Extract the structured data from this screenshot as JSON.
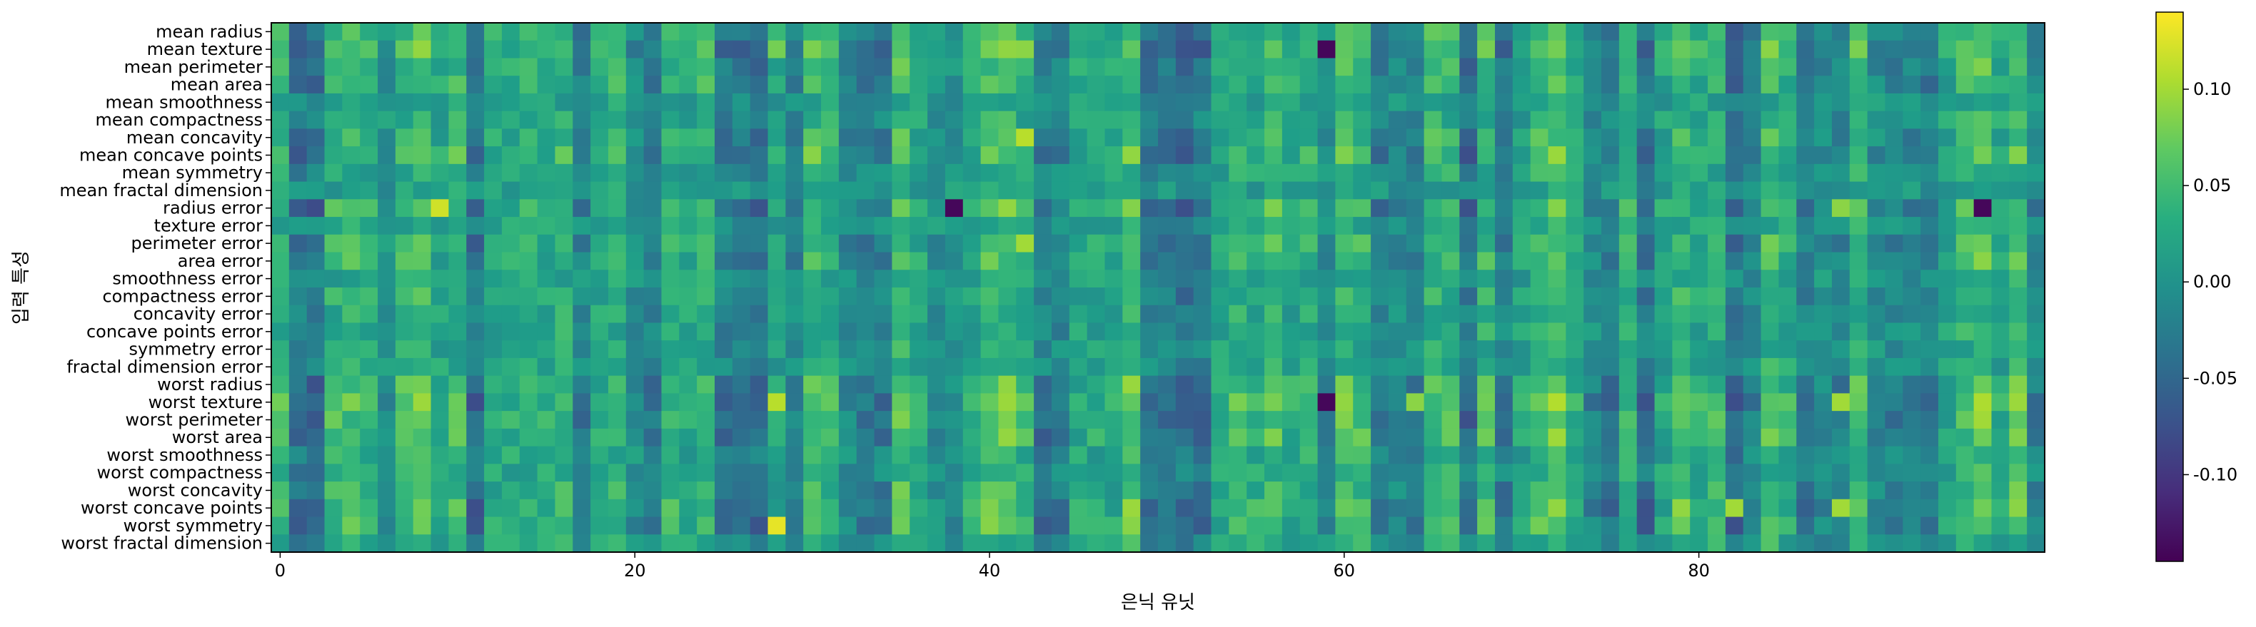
{
  "chart_data": {
    "type": "heatmap",
    "title": "",
    "xlabel": "은닉 유닛",
    "ylabel": "입력 특성",
    "n_columns": 100,
    "x_ticks": [
      0,
      20,
      40,
      60,
      80
    ],
    "y_categories": [
      "mean radius",
      "mean texture",
      "mean perimeter",
      "mean area",
      "mean smoothness",
      "mean compactness",
      "mean concavity",
      "mean concave points",
      "mean symmetry",
      "mean fractal dimension",
      "radius error",
      "texture error",
      "perimeter error",
      "area error",
      "smoothness error",
      "compactness error",
      "concavity error",
      "concave points error",
      "symmetry error",
      "fractal dimension error",
      "worst radius",
      "worst texture",
      "worst perimeter",
      "worst area",
      "worst smoothness",
      "worst compactness",
      "worst concavity",
      "worst concave points",
      "worst symmetry",
      "worst fractal dimension"
    ],
    "colorbar": {
      "colormap": "viridis",
      "range": [
        -0.145,
        0.14
      ],
      "ticks": [
        -0.1,
        -0.05,
        0.0,
        0.05,
        0.1
      ],
      "tick_labels": [
        "-0.10",
        "-0.05",
        "0.00",
        "0.05",
        "0.10"
      ]
    },
    "notable_values": [
      {
        "feature": "mean texture",
        "unit": 59,
        "value": -0.14
      },
      {
        "feature": "mean texture",
        "unit": 28,
        "value": 0.08
      },
      {
        "feature": "mean texture",
        "unit": 42,
        "value": 0.09
      },
      {
        "feature": "mean concavity",
        "unit": 42,
        "value": 0.11
      },
      {
        "feature": "radius error",
        "unit": 9,
        "value": 0.12
      },
      {
        "feature": "radius error",
        "unit": 38,
        "value": -0.14
      },
      {
        "feature": "radius error",
        "unit": 96,
        "value": -0.14
      },
      {
        "feature": "radius error",
        "unit": 88,
        "value": 0.09
      },
      {
        "feature": "perimeter error",
        "unit": 42,
        "value": 0.1
      },
      {
        "feature": "worst texture",
        "unit": 28,
        "value": 0.11
      },
      {
        "feature": "worst texture",
        "unit": 59,
        "value": -0.14
      },
      {
        "feature": "worst texture",
        "unit": 64,
        "value": 0.09
      },
      {
        "feature": "worst texture",
        "unit": 88,
        "value": 0.1
      },
      {
        "feature": "worst symmetry",
        "unit": 28,
        "value": 0.13
      },
      {
        "feature": "worst concave points",
        "unit": 82,
        "value": 0.1
      },
      {
        "feature": "worst concave points",
        "unit": 88,
        "value": 0.1
      }
    ]
  }
}
